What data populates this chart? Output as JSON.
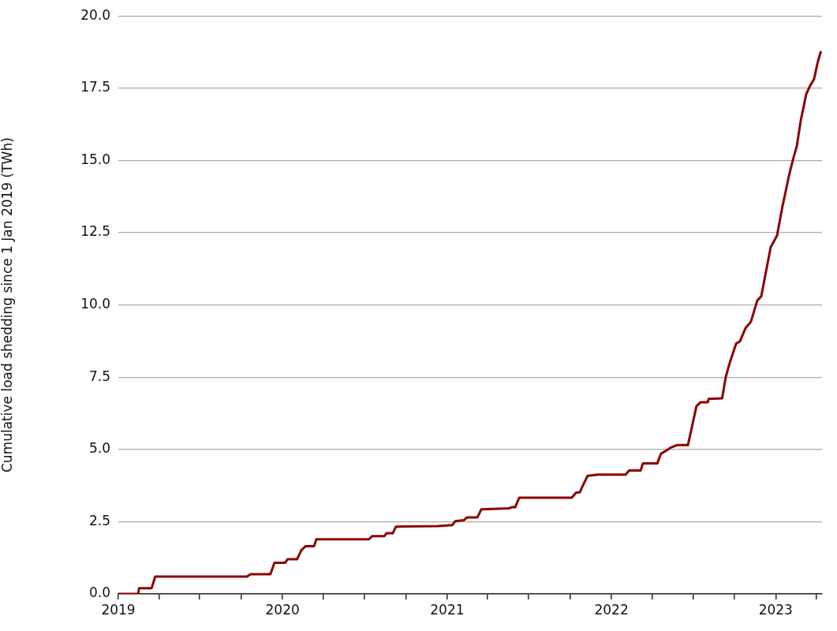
{
  "chart_data": {
    "type": "line",
    "ylabel": "Cumulative load shedding since 1 Jan 2019 (TWh)",
    "x": [
      "2019-01-01",
      "2019-02-14",
      "2019-02-16",
      "2019-03-16",
      "2019-03-24",
      "2019-10-14",
      "2019-10-22",
      "2019-12-05",
      "2019-12-14",
      "2020-01-07",
      "2020-01-12",
      "2020-02-02",
      "2020-02-12",
      "2020-02-21",
      "2020-03-11",
      "2020-03-16",
      "2020-07-11",
      "2020-07-18",
      "2020-08-14",
      "2020-08-19",
      "2020-09-02",
      "2020-09-09",
      "2020-12-11",
      "2021-01-12",
      "2021-01-19",
      "2021-02-07",
      "2021-02-14",
      "2021-03-09",
      "2021-03-18",
      "2021-05-18",
      "2021-05-24",
      "2021-06-01",
      "2021-06-10",
      "2021-10-05",
      "2021-10-14",
      "2021-10-23",
      "2021-10-28",
      "2021-11-09",
      "2021-12-02",
      "2022-02-02",
      "2022-02-09",
      "2022-03-07",
      "2022-03-12",
      "2022-04-13",
      "2022-04-21",
      "2022-05-04",
      "2022-05-12",
      "2022-05-27",
      "2022-06-20",
      "2022-07-09",
      "2022-07-18",
      "2022-08-03",
      "2022-08-05",
      "2022-09-04",
      "2022-09-12",
      "2022-09-21",
      "2022-10-05",
      "2022-10-14",
      "2022-10-26",
      "2022-11-07",
      "2022-11-21",
      "2022-11-30",
      "2022-12-21",
      "2023-01-04",
      "2023-01-16",
      "2023-01-31",
      "2023-02-08",
      "2023-02-17",
      "2023-02-26",
      "2023-03-10",
      "2023-03-19",
      "2023-03-27",
      "2023-04-05",
      "2023-04-11"
    ],
    "series": [
      {
        "color": "#8b0000",
        "values": [
          0,
          0,
          0.2,
          0.2,
          0.6,
          0.6,
          0.68,
          0.68,
          1.08,
          1.08,
          1.2,
          1.2,
          1.52,
          1.65,
          1.65,
          1.89,
          1.89,
          2.0,
          2.0,
          2.1,
          2.1,
          2.33,
          2.35,
          2.38,
          2.52,
          2.55,
          2.65,
          2.65,
          2.93,
          2.96,
          3.0,
          3.0,
          3.33,
          3.33,
          3.5,
          3.52,
          3.7,
          4.09,
          4.13,
          4.13,
          4.27,
          4.27,
          4.52,
          4.52,
          4.85,
          4.97,
          5.06,
          5.15,
          5.15,
          6.5,
          6.63,
          6.63,
          6.75,
          6.77,
          7.5,
          8.0,
          8.66,
          8.75,
          9.2,
          9.42,
          10.15,
          10.3,
          12.0,
          12.4,
          13.4,
          14.5,
          15.0,
          15.5,
          16.4,
          17.3,
          17.6,
          17.8,
          18.43,
          18.75
        ]
      }
    ],
    "xlim": [
      "2019-01-01",
      "2023-04-14"
    ],
    "xticks": [
      {
        "value": "2019",
        "label": "2019"
      },
      {
        "value": "2019-04",
        "label": null
      },
      {
        "value": "2019-07",
        "label": null
      },
      {
        "value": "2019-10",
        "label": null
      },
      {
        "value": "2020",
        "label": "2020"
      },
      {
        "value": "2020-04",
        "label": null
      },
      {
        "value": "2020-07",
        "label": null
      },
      {
        "value": "2020-10",
        "label": null
      },
      {
        "value": "2021",
        "label": "2021"
      },
      {
        "value": "2021-04",
        "label": null
      },
      {
        "value": "2021-07",
        "label": null
      },
      {
        "value": "2021-10",
        "label": null
      },
      {
        "value": "2022",
        "label": "2022"
      },
      {
        "value": "2022-04",
        "label": null
      },
      {
        "value": "2022-07",
        "label": null
      },
      {
        "value": "2022-10",
        "label": null
      },
      {
        "value": "2023",
        "label": "2023"
      },
      {
        "value": "2023-04",
        "label": null
      }
    ],
    "ylim": [
      0,
      20
    ],
    "yticks": [
      {
        "value": 0,
        "label": "0.0"
      },
      {
        "value": 2.5,
        "label": "2.5"
      },
      {
        "value": 5,
        "label": "5.0"
      },
      {
        "value": 7.5,
        "label": "7.5"
      },
      {
        "value": 10,
        "label": "10.0"
      },
      {
        "value": 12.5,
        "label": "12.5"
      },
      {
        "value": 15,
        "label": "15.0"
      },
      {
        "value": 17.5,
        "label": "17.5"
      },
      {
        "value": 20,
        "label": "20.0"
      }
    ],
    "grid": "y",
    "legend": false,
    "line_style": "solid",
    "marker": "none"
  }
}
